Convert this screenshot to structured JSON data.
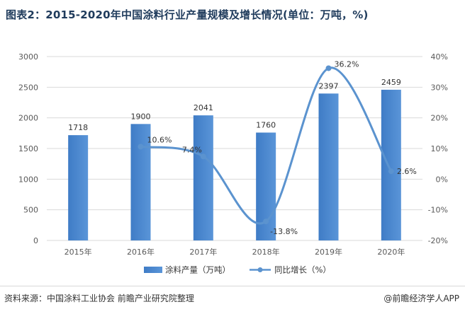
{
  "title": "图表2：2015-2020年中国涂料行业产量规模及增长情况(单位：万吨，%)",
  "source": "资料来源：中国涂料工业协会 前瞻产业研究院整理",
  "brand": "@前瞻经济学人APP",
  "colors": {
    "bar": "#4a86cf",
    "line": "#5b93cf",
    "axis_text": "#595959",
    "grid": "#d9d9d9"
  },
  "chart_data": {
    "type": "bar",
    "categories": [
      "2015年",
      "2016年",
      "2017年",
      "2018年",
      "2019年",
      "2020年"
    ],
    "series": [
      {
        "name": "涂料产量（万吨）",
        "type": "bar",
        "axis": "left",
        "values": [
          1718,
          1900,
          2041,
          1760,
          2397,
          2459
        ]
      },
      {
        "name": "同比增长（%）",
        "type": "line",
        "axis": "right",
        "values": [
          null,
          10.6,
          7.4,
          -13.8,
          36.2,
          2.6
        ]
      }
    ],
    "bar_labels": [
      "1718",
      "1900",
      "2041",
      "1760",
      "2397",
      "2459"
    ],
    "line_labels": [
      "",
      "10.6%",
      "7.4%",
      "-13.8%",
      "36.2%",
      "2.6%"
    ],
    "ylim_left": [
      0,
      3000
    ],
    "ylim_right": [
      -20,
      40
    ],
    "yticks_left": [
      "0",
      "500",
      "1000",
      "1500",
      "2000",
      "2500",
      "3000"
    ],
    "yticks_right": [
      "-20%",
      "-10%",
      "0%",
      "10%",
      "20%",
      "30%",
      "40%"
    ],
    "grid": true,
    "legend_position": "bottom"
  }
}
